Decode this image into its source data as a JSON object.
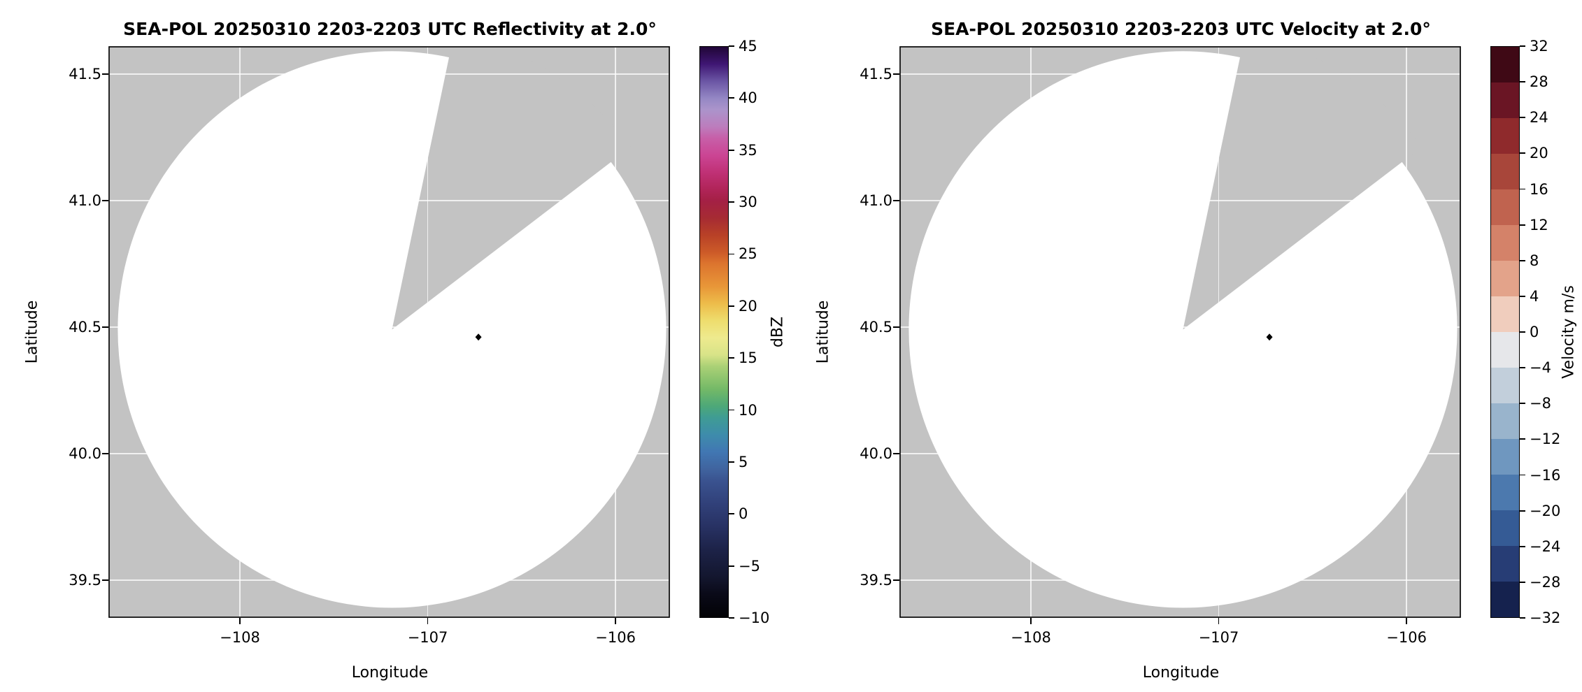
{
  "figure": {
    "background": "#ffffff",
    "nodata_gray": "#c3c3c3",
    "grid_color": "#ffffff"
  },
  "chart_data": [
    {
      "type": "radar-ppi-map",
      "panel": "left",
      "title": "SEA-POL 20250310 2203-2203 UTC Reflectivity at 2.0°",
      "field": "Reflectivity",
      "xlabel": "Longitude",
      "ylabel": "Latitude",
      "xlim": [
        -108.7,
        -105.71
      ],
      "ylim": [
        39.35,
        41.61
      ],
      "xticks": [
        -108,
        -107,
        -106
      ],
      "xtick_labels": [
        "−108",
        "−107",
        "−106"
      ],
      "yticks": [
        41.5,
        41.0,
        40.5,
        40.0,
        39.5
      ],
      "ytick_labels": [
        "41.5",
        "41.0",
        "40.5",
        "40.0",
        "39.5"
      ],
      "grid": true,
      "radar_center": {
        "lon": -107.19,
        "lat": 40.49
      },
      "coverage": {
        "radius_deg_lon": 1.46,
        "radius_deg_lat": 1.1,
        "note": "scan circle empty — no echoes above threshold"
      },
      "missing_sector": {
        "azimuth_start_deg": 12,
        "azimuth_end_deg": 53
      },
      "point_marker": {
        "lon": -106.73,
        "lat": 40.46,
        "color": "#000000",
        "shape": "diamond"
      },
      "colorbar": {
        "label": "dBZ",
        "min": -10,
        "max": 45,
        "ticks": [
          45,
          40,
          35,
          30,
          25,
          20,
          15,
          10,
          5,
          0,
          -5,
          -10
        ],
        "tick_labels": [
          "45",
          "40",
          "35",
          "30",
          "25",
          "20",
          "15",
          "10",
          "5",
          "0",
          "−5",
          "−10"
        ],
        "gradient_stops": [
          {
            "pos": "0%",
            "color": "#200636"
          },
          {
            "pos": "3%",
            "color": "#3f1673"
          },
          {
            "pos": "6%",
            "color": "#6a55a4"
          },
          {
            "pos": "9%",
            "color": "#9487c4"
          },
          {
            "pos": "11%",
            "color": "#ab94cb"
          },
          {
            "pos": "14%",
            "color": "#bc7dbd"
          },
          {
            "pos": "16%",
            "color": "#c75fa8"
          },
          {
            "pos": "19%",
            "color": "#cb4594"
          },
          {
            "pos": "22%",
            "color": "#c03176"
          },
          {
            "pos": "25%",
            "color": "#b02458"
          },
          {
            "pos": "27%",
            "color": "#a42045"
          },
          {
            "pos": "30%",
            "color": "#a62b33"
          },
          {
            "pos": "33%",
            "color": "#b84127"
          },
          {
            "pos": "36%",
            "color": "#cc5a28"
          },
          {
            "pos": "38%",
            "color": "#dc742e"
          },
          {
            "pos": "42%",
            "color": "#e89638"
          },
          {
            "pos": "45%",
            "color": "#edbc4a"
          },
          {
            "pos": "48%",
            "color": "#eedd6d"
          },
          {
            "pos": "51%",
            "color": "#eeea8e"
          },
          {
            "pos": "54%",
            "color": "#d8e388"
          },
          {
            "pos": "56%",
            "color": "#abd176"
          },
          {
            "pos": "60%",
            "color": "#74b967"
          },
          {
            "pos": "63%",
            "color": "#4da878"
          },
          {
            "pos": "65%",
            "color": "#3f9c94"
          },
          {
            "pos": "68%",
            "color": "#3e8cab"
          },
          {
            "pos": "71%",
            "color": "#4177b3"
          },
          {
            "pos": "74%",
            "color": "#40649f"
          },
          {
            "pos": "76%",
            "color": "#3a5390"
          },
          {
            "pos": "80%",
            "color": "#31417a"
          },
          {
            "pos": "84%",
            "color": "#283264"
          },
          {
            "pos": "88%",
            "color": "#1d2349"
          },
          {
            "pos": "93%",
            "color": "#13162e"
          },
          {
            "pos": "96%",
            "color": "#0a0a18"
          },
          {
            "pos": "100%",
            "color": "#020205"
          }
        ]
      }
    },
    {
      "type": "radar-ppi-map",
      "panel": "right",
      "title": "SEA-POL 20250310 2203-2203 UTC Velocity at 2.0°",
      "field": "Velocity",
      "xlabel": "Longitude",
      "ylabel": "Latitude",
      "xlim": [
        -108.7,
        -105.71
      ],
      "ylim": [
        39.35,
        41.61
      ],
      "xticks": [
        -108,
        -107,
        -106
      ],
      "xtick_labels": [
        "−108",
        "−107",
        "−106"
      ],
      "yticks": [
        41.5,
        41.0,
        40.5,
        40.0,
        39.5
      ],
      "ytick_labels": [
        "41.5",
        "41.0",
        "40.5",
        "40.0",
        "39.5"
      ],
      "grid": true,
      "radar_center": {
        "lon": -107.19,
        "lat": 40.49
      },
      "coverage": {
        "radius_deg_lon": 1.46,
        "radius_deg_lat": 1.1,
        "note": "scan circle empty — no echoes above threshold"
      },
      "missing_sector": {
        "azimuth_start_deg": 12,
        "azimuth_end_deg": 53
      },
      "point_marker": {
        "lon": -106.73,
        "lat": 40.46,
        "color": "#000000",
        "shape": "diamond"
      },
      "colorbar": {
        "label": "Velocity m/s",
        "min": -32,
        "max": 32,
        "ticks": [
          32,
          28,
          24,
          20,
          16,
          12,
          8,
          4,
          0,
          -4,
          -8,
          -12,
          -16,
          -20,
          -24,
          -28,
          -32
        ],
        "tick_labels": [
          "32",
          "28",
          "24",
          "20",
          "16",
          "12",
          "8",
          "4",
          "0",
          "−4",
          "−8",
          "−12",
          "−16",
          "−20",
          "−24",
          "−28",
          "−32"
        ],
        "segment_colors": [
          "#3f0915",
          "#6a1524",
          "#8f2a2c",
          "#a8463a",
          "#c0634f",
          "#d48269",
          "#e3a38a",
          "#f0cdbd",
          "#e6e7ea",
          "#c2cfdb",
          "#99b4cc",
          "#6f97bf",
          "#4c79ae",
          "#355b95",
          "#273d75",
          "#15224e"
        ]
      }
    }
  ]
}
